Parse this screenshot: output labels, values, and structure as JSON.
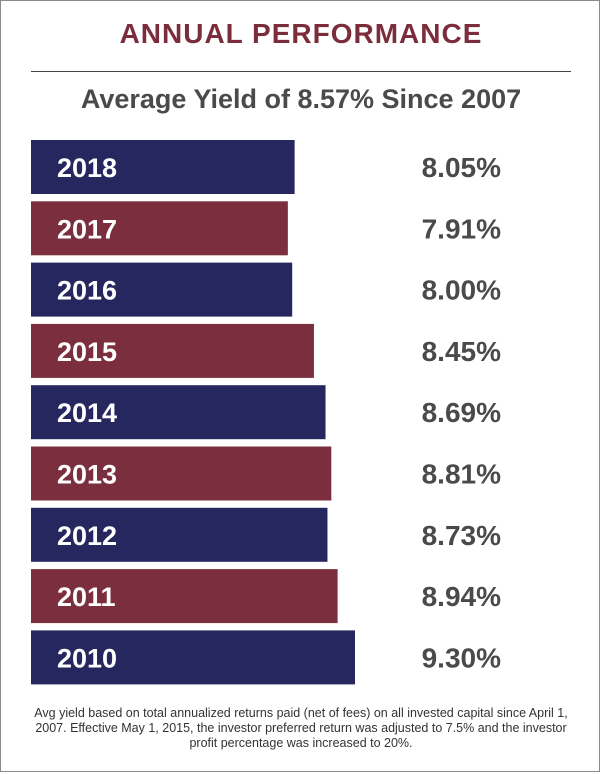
{
  "header": {
    "title": "ANNUAL PERFORMANCE",
    "subtitle": "Average Yield of 8.57% Since 2007"
  },
  "footnote": "Avg yield based on total annualized returns paid (net of fees) on all invested capital since April 1, 2007. Effective May 1, 2015, the investor preferred return was adjusted to 7.5% and the investor profit percentage was increased to 20%.",
  "colors": {
    "navy": "#26275e",
    "maroon": "#7a2e3e",
    "bar_text": "#ffffff",
    "value_text": "#4a4a4a"
  },
  "chart_data": {
    "type": "bar",
    "orientation": "horizontal",
    "title": "ANNUAL PERFORMANCE",
    "subtitle": "Average Yield of 8.57% Since 2007",
    "categories": [
      "2018",
      "2017",
      "2016",
      "2015",
      "2014",
      "2013",
      "2012",
      "2011",
      "2010"
    ],
    "values": [
      8.05,
      7.91,
      8.0,
      8.45,
      8.69,
      8.81,
      8.73,
      8.94,
      9.3
    ],
    "value_labels": [
      "8.05%",
      "7.91%",
      "8.00%",
      "8.45%",
      "8.69%",
      "8.81%",
      "8.73%",
      "8.94%",
      "9.30%"
    ],
    "bar_colors": [
      "navy",
      "maroon",
      "navy",
      "maroon",
      "navy",
      "maroon",
      "navy",
      "maroon",
      "navy"
    ],
    "unit": "%",
    "grid": false,
    "legend": "none"
  }
}
